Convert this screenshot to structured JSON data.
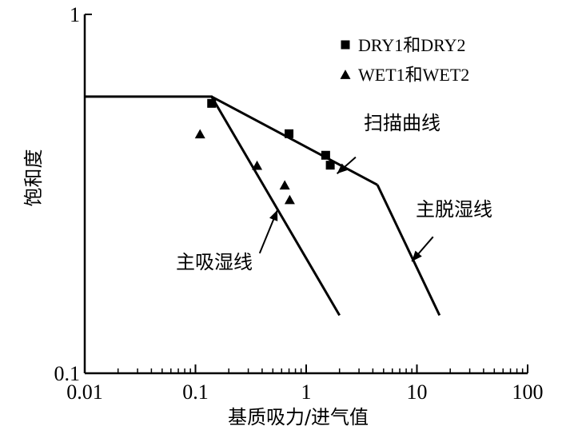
{
  "chart_data": {
    "type": "line",
    "xscale": "log",
    "yscale": "log",
    "xlim": [
      0.01,
      100
    ],
    "ylim": [
      0.1,
      1
    ],
    "xticks": [
      "0.01",
      "0.1",
      "1",
      "10",
      "100"
    ],
    "yticks": [
      "1",
      "0.1"
    ],
    "xlabel": "基质吸力/进气值",
    "ylabel": "饱和度",
    "grid": false,
    "legend_position": "top-right",
    "lines": [
      {
        "name": "主吸湿线",
        "x": [
          0.01,
          0.14,
          2.0
        ],
        "y": [
          0.59,
          0.59,
          0.145
        ]
      },
      {
        "name": "扫描曲线",
        "x": [
          0.14,
          4.4
        ],
        "y": [
          0.59,
          0.335
        ]
      },
      {
        "name": "主脱湿线",
        "x": [
          4.4,
          16.0
        ],
        "y": [
          0.335,
          0.145
        ]
      }
    ],
    "series": [
      {
        "name": "DRY1和DRY2",
        "marker": "square",
        "x": [
          0.14,
          0.7,
          1.5,
          1.65
        ],
        "y": [
          0.565,
          0.465,
          0.405,
          0.38
        ]
      },
      {
        "name": "WET1和WET2",
        "marker": "triangle",
        "x": [
          0.11,
          0.36,
          0.64,
          0.71
        ],
        "y": [
          0.465,
          0.38,
          0.335,
          0.305
        ]
      }
    ],
    "annotations": [
      {
        "text": "扫描曲线",
        "arrow_from": [
          2.8,
          0.4
        ],
        "arrow_to": [
          1.9,
          0.36
        ]
      },
      {
        "text": "主脱湿线",
        "arrow_from": [
          14.0,
          0.24
        ],
        "arrow_to": [
          9.0,
          0.205
        ]
      },
      {
        "text": "主吸湿线",
        "arrow_from": [
          0.38,
          0.216
        ],
        "arrow_to": [
          0.55,
          0.285
        ]
      }
    ]
  }
}
